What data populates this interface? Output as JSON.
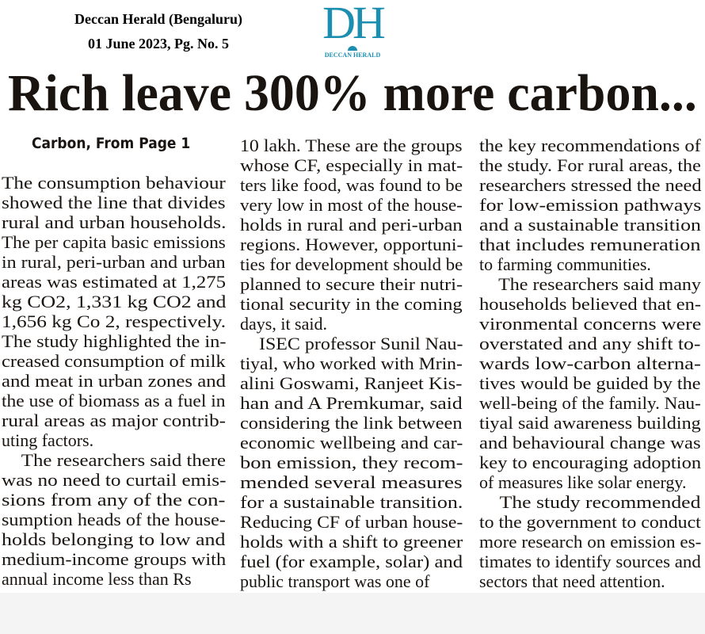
{
  "source": {
    "publication": "Deccan Herald (Bengaluru)",
    "date_page": "01 June 2023, Pg. No. 5"
  },
  "logo": {
    "mark": "DH",
    "name": "DECCAN HERALD",
    "color": "#1c8eb0"
  },
  "headline": "Rich leave 300% more carbon...",
  "subhead": "Carbon, From Page 1",
  "columns": [
    {
      "paragraphs": [
        {
          "lines": [
            "The consumption behaviour",
            "showed the line that divides",
            "rural and urban households.",
            "The per capita basic emissions",
            "in rural, peri-urban and urban",
            "areas was estimated at 1,275",
            "kg CO2, 1,331 kg CO2 and",
            "1,656 kg Co 2, respectively.",
            "The study highlighted the in-",
            "creased consumption of milk",
            "and meat in urban zones and",
            "the use of biomass as a fuel in",
            "rural areas as major contrib-",
            "uting factors."
          ]
        },
        {
          "lines": [
            "The researchers said there",
            "was no need to curtail emis-",
            "sions from any of the con-",
            "sumption heads of the house-",
            "holds belonging to low and",
            "medium-income groups with",
            "annual income less than Rs"
          ]
        }
      ]
    },
    {
      "paragraphs": [
        {
          "lines": [
            "10 lakh. These are the groups",
            "whose CF, especially in mat-",
            "ters like food, was found to be",
            "very low in most of the house-",
            "holds in rural and peri-urban",
            "regions. However, opportuni-",
            "ties for development should be",
            "planned to secure their nutri-",
            "tional security in the coming",
            "days, it said."
          ]
        },
        {
          "lines": [
            "ISEC professor Sunil Nau-",
            "tiyal, who worked with Mrin-",
            "alini Goswami, Ranjeet Kis-",
            "han and A Premkumar, said",
            "considering the link between",
            "economic wellbeing and car-",
            "bon emission, they recom-",
            "mended several measures",
            "for a sustainable transition.",
            "Reducing CF of urban house-",
            "holds with a shift to greener",
            "fuel (for example, solar) and",
            "public transport was one of"
          ]
        }
      ]
    },
    {
      "paragraphs": [
        {
          "lines": [
            "the key recommendations of",
            "the study. For rural areas, the",
            "researchers stressed the need",
            "for low-emission pathways",
            "and a sustainable transition",
            "that includes remuneration",
            "to farming communities."
          ]
        },
        {
          "lines": [
            "The researchers said many",
            "households believed that en-",
            "vironmental concerns were",
            "overstated and any shift to-",
            "wards low-carbon alterna-",
            "tives would be guided by the",
            "well-being of the family. Nau-",
            "tiyal said awareness building",
            "and behavioural change was",
            "key to encouraging adoption",
            "of measures like solar energy."
          ]
        },
        {
          "lines": [
            "The study recommended",
            "to the government to conduct",
            "more research on emission es-",
            "timates to identify sources and",
            "sectors that need attention."
          ]
        }
      ]
    }
  ]
}
